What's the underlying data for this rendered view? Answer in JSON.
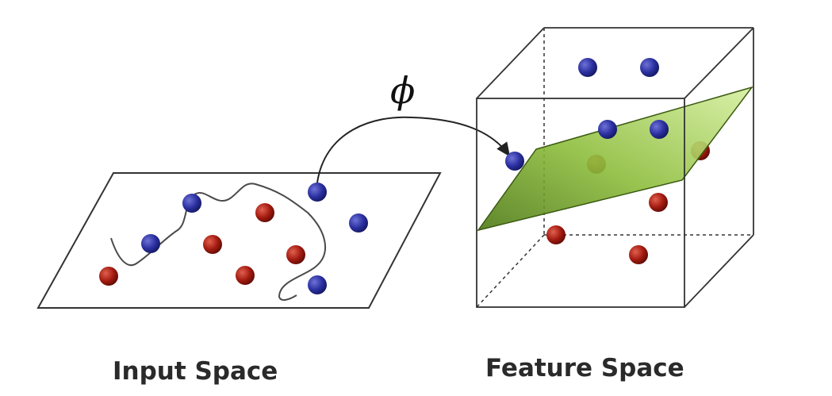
{
  "input_space": {
    "caption": "Input Space",
    "points": [
      {
        "class": "blue"
      },
      {
        "class": "blue"
      },
      {
        "class": "blue"
      },
      {
        "class": "blue"
      },
      {
        "class": "blue"
      },
      {
        "class": "red"
      },
      {
        "class": "red"
      },
      {
        "class": "red"
      },
      {
        "class": "red"
      },
      {
        "class": "red"
      }
    ]
  },
  "feature_space": {
    "caption": "Feature Space",
    "points": [
      {
        "class": "blue"
      },
      {
        "class": "blue"
      },
      {
        "class": "blue"
      },
      {
        "class": "blue"
      },
      {
        "class": "blue"
      },
      {
        "class": "red"
      },
      {
        "class": "red"
      },
      {
        "class": "red"
      },
      {
        "class": "red"
      },
      {
        "class": "red"
      }
    ]
  },
  "mapping": {
    "symbol": "ϕ"
  },
  "colors": {
    "blue_point": "#2a2fa0",
    "red_point": "#a31a10",
    "hyperplane": "#8fbf3f",
    "outline": "#333333"
  }
}
